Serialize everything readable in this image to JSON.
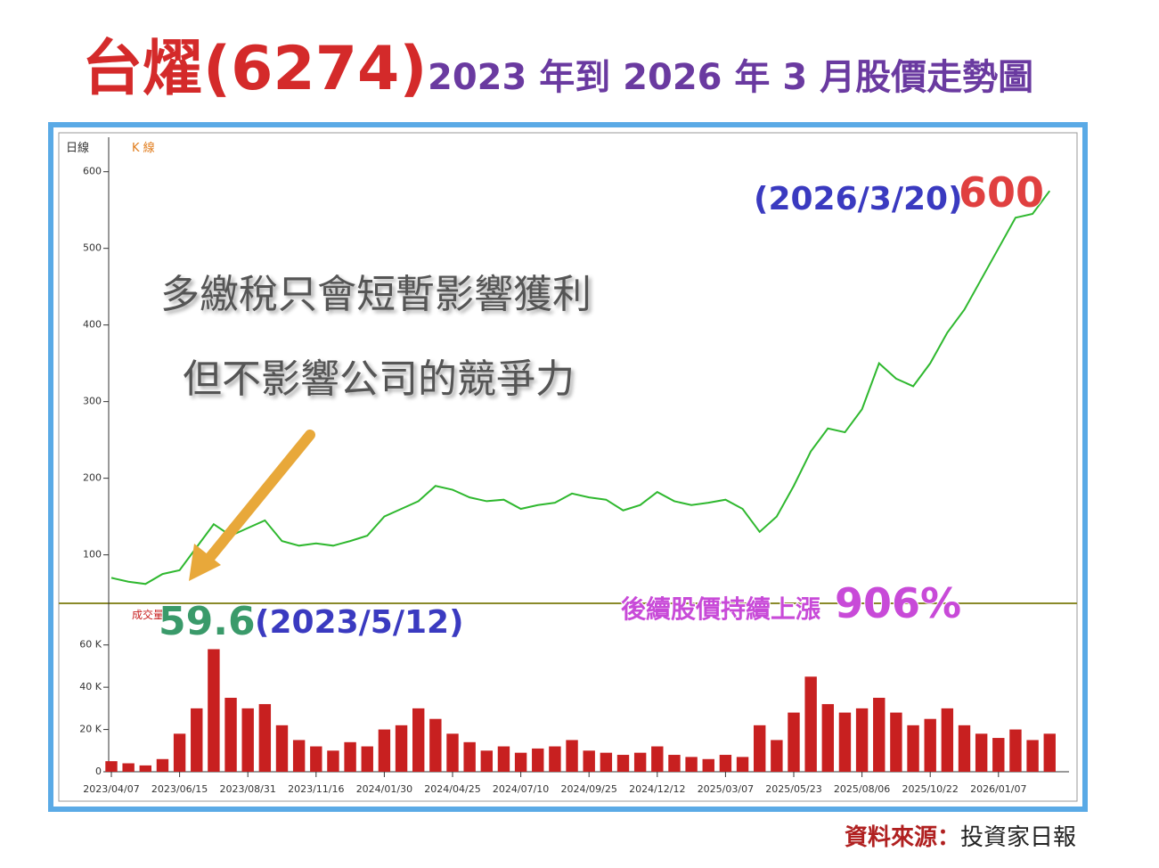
{
  "header": {
    "title": "台燿(6274)",
    "subtitle": "2023 年到 2026 年 3 月股價走勢圖"
  },
  "source": {
    "label": "資料來源：",
    "name": "投資家日報"
  },
  "chart_data": {
    "type": "line",
    "legend": {
      "panel": "日線",
      "series": "K 線",
      "volume": "成交量"
    },
    "annotations": {
      "note_line1": "多繳稅只會短暫影響獲利",
      "note_line2": "但不影響公司的競爭力",
      "low_value": "59.6",
      "low_date": "(2023/5/12)",
      "high_date": "(2026/3/20)",
      "high_value": "600",
      "gain_text": "後續股價持續上漲",
      "gain_value": "906%"
    },
    "categories": [
      "2023/04/07",
      null,
      null,
      null,
      "2023/06/15",
      null,
      null,
      null,
      "2023/08/31",
      null,
      null,
      null,
      "2023/11/16",
      null,
      null,
      null,
      "2024/01/30",
      null,
      null,
      null,
      "2024/04/25",
      null,
      null,
      null,
      "2024/07/10",
      null,
      null,
      null,
      "2024/09/25",
      null,
      null,
      null,
      "2024/12/12",
      null,
      null,
      null,
      "2025/03/07",
      null,
      null,
      null,
      "2025/05/23",
      null,
      null,
      null,
      "2025/08/06",
      null,
      null,
      null,
      "2025/10/22",
      null,
      null,
      null,
      "2026/01/07",
      null,
      null,
      null
    ],
    "series": [
      {
        "name": "K 線",
        "color": "#2fb82f",
        "values": [
          70,
          65,
          62,
          75,
          80,
          110,
          140,
          125,
          135,
          145,
          118,
          112,
          115,
          112,
          118,
          125,
          150,
          160,
          170,
          190,
          185,
          175,
          170,
          172,
          160,
          165,
          168,
          180,
          175,
          172,
          158,
          165,
          182,
          170,
          165,
          168,
          172,
          160,
          130,
          150,
          190,
          235,
          265,
          260,
          290,
          350,
          330,
          320,
          350,
          390,
          420,
          460,
          500,
          540,
          545,
          575
        ]
      }
    ],
    "volume": {
      "name": "成交量",
      "color": "#c82020",
      "values": [
        5000,
        4000,
        3000,
        6000,
        18000,
        30000,
        58000,
        35000,
        30000,
        32000,
        22000,
        15000,
        12000,
        10000,
        14000,
        12000,
        20000,
        22000,
        30000,
        25000,
        18000,
        14000,
        10000,
        12000,
        9000,
        11000,
        12000,
        15000,
        10000,
        9000,
        8000,
        9000,
        12000,
        8000,
        7000,
        6000,
        8000,
        7000,
        22000,
        15000,
        28000,
        45000,
        32000,
        28000,
        30000,
        35000,
        28000,
        22000,
        25000,
        30000,
        22000,
        18000,
        16000,
        20000,
        15000,
        18000
      ]
    },
    "ylim": [
      10,
      645
    ],
    "yticks": [
      100,
      200,
      300,
      400,
      500,
      600
    ],
    "vlim": [
      0,
      70000
    ],
    "vticks": [
      {
        "value": 0,
        "label": "0"
      },
      {
        "value": 20000,
        "label": "20 K"
      },
      {
        "value": 40000,
        "label": "40 K"
      },
      {
        "value": 60000,
        "label": "60 K"
      }
    ]
  }
}
